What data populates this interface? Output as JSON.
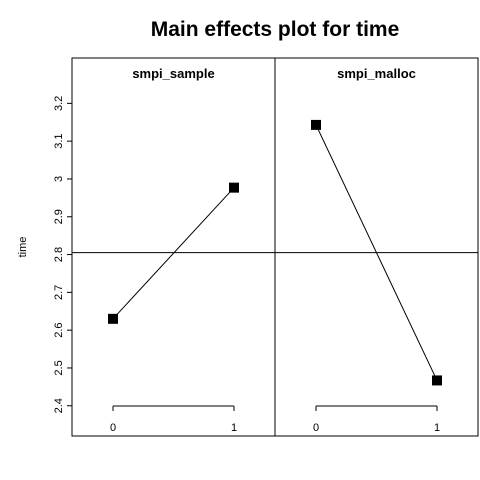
{
  "chart_data": {
    "type": "line",
    "title": "Main effects plot for time",
    "ylabel": "time",
    "ylim": [
      2.32,
      3.32
    ],
    "yticks": [
      "2.4",
      "2.5",
      "2.6",
      "2.7",
      "2.8",
      "2.9",
      "3",
      "3.1",
      "3.2"
    ],
    "reference_line": 2.805,
    "panels": [
      {
        "factor": "smpi_sample",
        "x": [
          "0",
          "1"
        ],
        "values": [
          2.63,
          2.977
        ]
      },
      {
        "factor": "smpi_malloc",
        "x": [
          "0",
          "1"
        ],
        "values": [
          3.143,
          2.467
        ]
      }
    ]
  }
}
